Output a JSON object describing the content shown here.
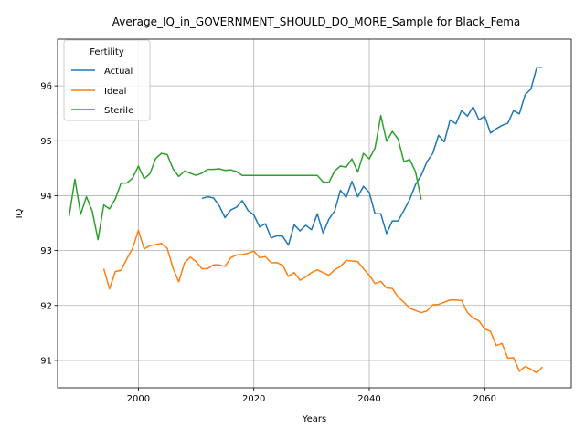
{
  "chart_data": {
    "type": "line",
    "title": "Average_IQ_in_GOVERNMENT_SHOULD_DO_MORE_Sample for Black_Fema",
    "xlabel": "Years",
    "ylabel": "IQ",
    "xlim": [
      1986,
      2075
    ],
    "ylim": [
      90.5,
      96.85
    ],
    "xticks": [
      2000,
      2020,
      2040,
      2060
    ],
    "yticks": [
      91,
      92,
      93,
      94,
      95,
      96
    ],
    "grid": true,
    "legend": {
      "title": "Fertility",
      "position": "top-left"
    },
    "series": [
      {
        "name": "Actual",
        "color": "#1f77b4",
        "x": [
          2011,
          2012,
          2013,
          2014,
          2015,
          2016,
          2017,
          2018,
          2019,
          2020,
          2021,
          2022,
          2023,
          2024,
          2025,
          2026,
          2027,
          2028,
          2029,
          2030,
          2031,
          2032,
          2033,
          2034,
          2035,
          2036,
          2037,
          2038,
          2039,
          2040,
          2041,
          2042,
          2043,
          2044,
          2045,
          2046,
          2047,
          2048,
          2049,
          2050,
          2051,
          2052,
          2053,
          2054,
          2055,
          2056,
          2057,
          2058,
          2059,
          2060,
          2061,
          2062,
          2063,
          2064,
          2065,
          2066,
          2067,
          2068,
          2069,
          2070
        ],
        "values": [
          93.95,
          93.98,
          93.96,
          93.82,
          93.6,
          93.74,
          93.79,
          93.91,
          93.73,
          93.65,
          93.43,
          93.49,
          93.23,
          93.27,
          93.26,
          93.1,
          93.47,
          93.36,
          93.46,
          93.38,
          93.67,
          93.32,
          93.57,
          93.72,
          94.1,
          93.97,
          94.26,
          93.98,
          94.17,
          94.06,
          93.67,
          93.67,
          93.31,
          93.54,
          93.54,
          93.73,
          93.93,
          94.2,
          94.37,
          94.62,
          94.77,
          95.1,
          94.98,
          95.38,
          95.31,
          95.55,
          95.45,
          95.62,
          95.38,
          95.45,
          95.14,
          95.22,
          95.28,
          95.32,
          95.55,
          95.49,
          95.84,
          95.94,
          96.33,
          96.33
        ]
      },
      {
        "name": "Ideal",
        "color": "#ff7f0e",
        "x": [
          1994,
          1995,
          1996,
          1997,
          1998,
          1999,
          2000,
          2001,
          2002,
          2003,
          2004,
          2005,
          2006,
          2007,
          2008,
          2009,
          2010,
          2011,
          2012,
          2013,
          2014,
          2015,
          2016,
          2017,
          2018,
          2019,
          2020,
          2021,
          2022,
          2023,
          2024,
          2025,
          2026,
          2027,
          2028,
          2029,
          2030,
          2031,
          2032,
          2033,
          2034,
          2035,
          2036,
          2037,
          2038,
          2039,
          2040,
          2041,
          2042,
          2043,
          2044,
          2045,
          2046,
          2047,
          2048,
          2049,
          2050,
          2051,
          2052,
          2053,
          2054,
          2055,
          2056,
          2057,
          2058,
          2059,
          2060,
          2061,
          2062,
          2063,
          2064,
          2065,
          2066,
          2067,
          2068,
          2069,
          2070
        ],
        "values": [
          92.67,
          92.3,
          92.62,
          92.64,
          92.85,
          93.04,
          93.37,
          93.03,
          93.09,
          93.11,
          93.13,
          93.04,
          92.68,
          92.43,
          92.78,
          92.88,
          92.8,
          92.67,
          92.67,
          92.74,
          92.74,
          92.71,
          92.87,
          92.92,
          92.93,
          92.95,
          92.99,
          92.87,
          92.89,
          92.78,
          92.78,
          92.73,
          92.53,
          92.6,
          92.46,
          92.52,
          92.6,
          92.65,
          92.6,
          92.55,
          92.65,
          92.71,
          92.82,
          92.81,
          92.8,
          92.67,
          92.55,
          92.4,
          92.44,
          92.32,
          92.31,
          92.15,
          92.06,
          91.95,
          91.91,
          91.87,
          91.9,
          92.01,
          92.02,
          92.06,
          92.1,
          92.1,
          92.09,
          91.87,
          91.77,
          91.72,
          91.57,
          91.53,
          91.27,
          91.31,
          91.04,
          91.05,
          90.8,
          90.89,
          90.84,
          90.77,
          90.88
        ]
      },
      {
        "name": "Sterile",
        "color": "#2ca02c",
        "x": [
          1988,
          1989,
          1990,
          1991,
          1992,
          1993,
          1994,
          1995,
          1996,
          1997,
          1998,
          1999,
          2000,
          2001,
          2002,
          2003,
          2004,
          2005,
          2006,
          2007,
          2008,
          2009,
          2010,
          2011,
          2012,
          2013,
          2014,
          2015,
          2016,
          2017,
          2018,
          2019,
          2020,
          2021,
          2022,
          2023,
          2024,
          2025,
          2026,
          2027,
          2028,
          2029,
          2030,
          2031,
          2032,
          2033,
          2034,
          2035,
          2036,
          2037,
          2038,
          2039,
          2040,
          2041,
          2042,
          2043,
          2044,
          2045,
          2046,
          2047,
          2048,
          2049
        ],
        "values": [
          93.62,
          94.3,
          93.66,
          93.98,
          93.72,
          93.2,
          93.83,
          93.76,
          93.94,
          94.23,
          94.23,
          94.32,
          94.54,
          94.31,
          94.4,
          94.68,
          94.77,
          94.75,
          94.49,
          94.35,
          94.45,
          94.41,
          94.37,
          94.41,
          94.48,
          94.48,
          94.49,
          94.46,
          94.47,
          94.44,
          94.37,
          94.37,
          94.37,
          94.37,
          94.37,
          94.37,
          94.37,
          94.37,
          94.37,
          94.37,
          94.37,
          94.37,
          94.37,
          94.37,
          94.25,
          94.24,
          94.45,
          94.54,
          94.52,
          94.67,
          94.43,
          94.77,
          94.67,
          94.87,
          95.46,
          94.99,
          95.17,
          95.03,
          94.62,
          94.66,
          94.44,
          93.93
        ]
      }
    ]
  }
}
